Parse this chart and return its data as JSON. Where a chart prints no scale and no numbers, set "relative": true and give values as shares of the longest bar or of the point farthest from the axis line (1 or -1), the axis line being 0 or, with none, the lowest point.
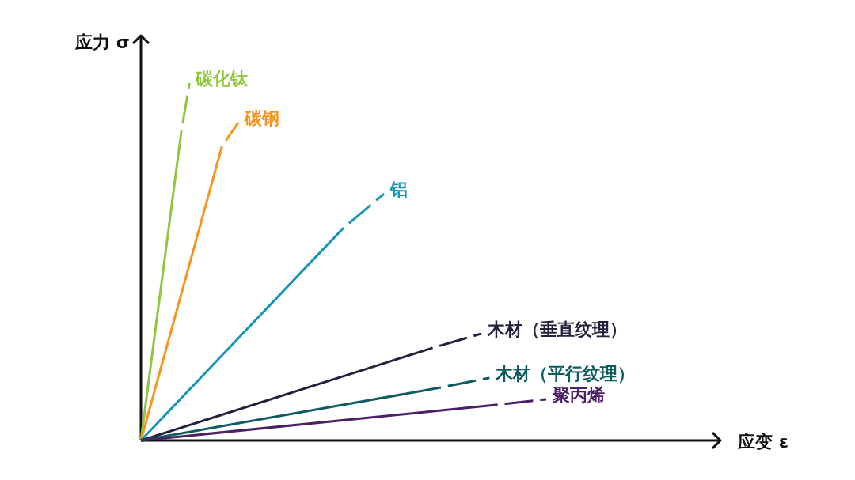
{
  "chart_data": {
    "type": "line",
    "relative": true,
    "annotations": [
      "应变 ε"
    ],
    "ylabel": "应力 σ",
    "categories": [
      null,
      null,
      null,
      null,
      null,
      null,
      null,
      null,
      null,
      null,
      null,
      null,
      null,
      null,
      null,
      null,
      null,
      null,
      null,
      null,
      null,
      null,
      null,
      null,
      null,
      null,
      null,
      null,
      null,
      null,
      null,
      null,
      null,
      null,
      null,
      null,
      null,
      null,
      null,
      null,
      null,
      null,
      null,
      null,
      null,
      null,
      null,
      null,
      null,
      null,
      null
    ],
    "series": [
      {
        "color": "#8dc63f",
        "line_style": "solid",
        "values": [
          0,
          null,
          null,
          null,
          null,
          0.867,
          null,
          null,
          null,
          null,
          null,
          null,
          null,
          null,
          null,
          null,
          null,
          null,
          null,
          null,
          null,
          null,
          null,
          null,
          null,
          null,
          null,
          null,
          null,
          null,
          null,
          null,
          null,
          null,
          null,
          null,
          null,
          null,
          null,
          null,
          null,
          null,
          null,
          null,
          null,
          null,
          null,
          null,
          null,
          null,
          null
        ]
      },
      {
        "name": "碳化钛",
        "color": "#8dc63f",
        "line_style": "dashed",
        "values": [
          null,
          null,
          null,
          null,
          null,
          0.867,
          1.0,
          null,
          null,
          null,
          null,
          null,
          null,
          null,
          null,
          null,
          null,
          null,
          null,
          null,
          null,
          null,
          null,
          null,
          null,
          null,
          null,
          null,
          null,
          null,
          null,
          null,
          null,
          null,
          null,
          null,
          null,
          null,
          null,
          null,
          null,
          null,
          null,
          null,
          null,
          null,
          null,
          null,
          null,
          null,
          null
        ]
      },
      {
        "color": "#f7941d",
        "line_style": "solid",
        "values": [
          0,
          null,
          null,
          null,
          null,
          null,
          null,
          null,
          null,
          null,
          0.823,
          null,
          null,
          null,
          null,
          null,
          null,
          null,
          null,
          null,
          null,
          null,
          null,
          null,
          null,
          null,
          null,
          null,
          null,
          null,
          null,
          null,
          null,
          null,
          null,
          null,
          null,
          null,
          null,
          null,
          null,
          null,
          null,
          null,
          null,
          null,
          null,
          null,
          null,
          null,
          null
        ]
      },
      {
        "name": "碳钢",
        "color": "#f7941d",
        "line_style": "dashed",
        "values": [
          null,
          null,
          null,
          null,
          null,
          null,
          null,
          null,
          null,
          null,
          0.823,
          null,
          0.889,
          null,
          null,
          null,
          null,
          null,
          null,
          null,
          null,
          null,
          null,
          null,
          null,
          null,
          null,
          null,
          null,
          null,
          null,
          null,
          null,
          null,
          null,
          null,
          null,
          null,
          null,
          null,
          null,
          null,
          null,
          null,
          null,
          null,
          null,
          null,
          null,
          null,
          null
        ]
      },
      {
        "color": "#1596b8",
        "line_style": "solid",
        "values": [
          0,
          null,
          null,
          null,
          null,
          null,
          null,
          null,
          null,
          null,
          null,
          null,
          null,
          null,
          null,
          null,
          null,
          null,
          null,
          null,
          null,
          null,
          null,
          null,
          null,
          0.595,
          null,
          null,
          null,
          null,
          null,
          null,
          null,
          null,
          null,
          null,
          null,
          null,
          null,
          null,
          null,
          null,
          null,
          null,
          null,
          null,
          null,
          null,
          null,
          null,
          null
        ]
      },
      {
        "name": "铝",
        "color": "#1596b8",
        "line_style": "dashed",
        "values": [
          null,
          null,
          null,
          null,
          null,
          null,
          null,
          null,
          null,
          null,
          null,
          null,
          null,
          null,
          null,
          null,
          null,
          null,
          null,
          null,
          null,
          null,
          null,
          null,
          null,
          0.595,
          null,
          null,
          null,
          null,
          0.69,
          null,
          null,
          null,
          null,
          null,
          null,
          null,
          null,
          null,
          null,
          null,
          null,
          null,
          null,
          null,
          null,
          null,
          null,
          null,
          null
        ]
      },
      {
        "color": "#24213d",
        "line_style": "solid",
        "values": [
          0,
          null,
          null,
          null,
          null,
          null,
          null,
          null,
          null,
          null,
          null,
          null,
          null,
          null,
          null,
          null,
          null,
          null,
          null,
          null,
          null,
          null,
          null,
          null,
          null,
          null,
          null,
          null,
          null,
          null,
          null,
          null,
          null,
          null,
          null,
          null,
          0.259,
          null,
          null,
          null,
          null,
          null,
          null,
          null,
          null,
          null,
          null,
          null,
          null,
          null,
          null
        ]
      },
      {
        "name": "木材（垂直纹理）",
        "color": "#24213d",
        "line_style": "dashed",
        "values": [
          null,
          null,
          null,
          null,
          null,
          null,
          null,
          null,
          null,
          null,
          null,
          null,
          null,
          null,
          null,
          null,
          null,
          null,
          null,
          null,
          null,
          null,
          null,
          null,
          null,
          null,
          null,
          null,
          null,
          null,
          null,
          null,
          null,
          null,
          null,
          null,
          0.259,
          null,
          null,
          null,
          null,
          null,
          0.299,
          null,
          null,
          null,
          null,
          null,
          null,
          null,
          null
        ]
      },
      {
        "color": "#0e5b60",
        "line_style": "solid",
        "values": [
          0,
          null,
          null,
          null,
          null,
          null,
          null,
          null,
          null,
          null,
          null,
          null,
          null,
          null,
          null,
          null,
          null,
          null,
          null,
          null,
          null,
          null,
          null,
          null,
          null,
          null,
          null,
          null,
          null,
          null,
          null,
          null,
          null,
          null,
          null,
          null,
          null,
          0.148,
          null,
          null,
          null,
          null,
          null,
          null,
          null,
          null,
          null,
          null,
          null,
          null,
          null
        ]
      },
      {
        "name": "木材（平行纹理）",
        "color": "#0e5b60",
        "line_style": "dashed",
        "values": [
          null,
          null,
          null,
          null,
          null,
          null,
          null,
          null,
          null,
          null,
          null,
          null,
          null,
          null,
          null,
          null,
          null,
          null,
          null,
          null,
          null,
          null,
          null,
          null,
          null,
          null,
          null,
          null,
          null,
          null,
          null,
          null,
          null,
          null,
          null,
          null,
          null,
          0.148,
          null,
          null,
          null,
          null,
          null,
          0.175,
          null,
          null,
          null,
          null,
          null,
          null,
          null
        ]
      },
      {
        "color": "#4a2066",
        "line_style": "solid",
        "values": [
          0,
          null,
          null,
          null,
          null,
          null,
          null,
          null,
          null,
          null,
          null,
          null,
          null,
          null,
          null,
          null,
          null,
          null,
          null,
          null,
          null,
          null,
          null,
          null,
          null,
          null,
          null,
          null,
          null,
          null,
          null,
          null,
          null,
          null,
          null,
          null,
          null,
          null,
          null,
          null,
          null,
          null,
          null,
          null,
          0.1,
          null,
          null,
          null,
          null,
          null,
          null
        ]
      },
      {
        "name": "聚丙烯",
        "color": "#4a2066",
        "line_style": "dashed",
        "values": [
          null,
          null,
          null,
          null,
          null,
          null,
          null,
          null,
          null,
          null,
          null,
          null,
          null,
          null,
          null,
          null,
          null,
          null,
          null,
          null,
          null,
          null,
          null,
          null,
          null,
          null,
          null,
          null,
          null,
          null,
          null,
          null,
          null,
          null,
          null,
          null,
          null,
          null,
          null,
          null,
          null,
          null,
          null,
          null,
          0.1,
          null,
          null,
          null,
          null,
          null,
          0.115
        ]
      }
    ]
  }
}
